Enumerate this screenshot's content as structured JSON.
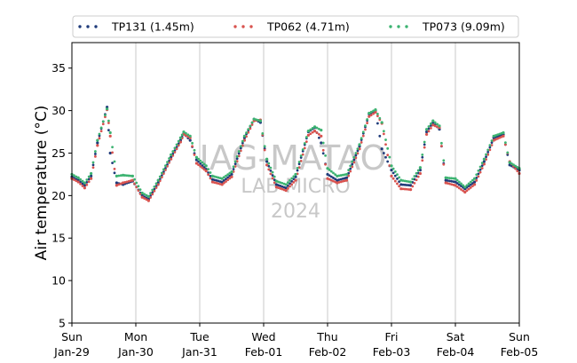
{
  "chart_data": {
    "type": "scatter",
    "ylabel": "Air temperature (°C)",
    "xlabel": "",
    "ylim": [
      5,
      38
    ],
    "yticks": [
      5,
      10,
      15,
      20,
      25,
      30,
      35
    ],
    "x_range_days": [
      0,
      7
    ],
    "xticks": [
      {
        "day": "Sun",
        "date": "Jan-29"
      },
      {
        "day": "Mon",
        "date": "Jan-30"
      },
      {
        "day": "Tue",
        "date": "Jan-31"
      },
      {
        "day": "Wed",
        "date": "Feb-01"
      },
      {
        "day": "Thu",
        "date": "Feb-02"
      },
      {
        "day": "Fri",
        "date": "Feb-03"
      },
      {
        "day": "Sat",
        "date": "Feb-04"
      },
      {
        "day": "Sun",
        "date": "Feb-05"
      }
    ],
    "grid": "vertical",
    "legend_position": "top",
    "watermark": [
      "IAG-MATAO",
      "LAB MICRO",
      "2024"
    ],
    "series": [
      {
        "name": "TP131 (1.45m)",
        "color": "#1f3b7a",
        "points": [
          [
            0.0,
            22.2
          ],
          [
            0.1,
            21.8
          ],
          [
            0.2,
            21.2
          ],
          [
            0.3,
            22.3
          ],
          [
            0.4,
            26.2
          ],
          [
            0.55,
            30.4
          ],
          [
            0.6,
            25.0
          ],
          [
            0.7,
            21.5
          ],
          [
            0.8,
            21.3
          ],
          [
            0.95,
            21.7
          ],
          [
            1.1,
            20.0
          ],
          [
            1.2,
            19.6
          ],
          [
            1.35,
            21.5
          ],
          [
            1.55,
            24.5
          ],
          [
            1.7,
            26.5
          ],
          [
            1.75,
            27.3
          ],
          [
            1.85,
            26.5
          ],
          [
            1.95,
            24.2
          ],
          [
            2.1,
            23.1
          ],
          [
            2.2,
            21.9
          ],
          [
            2.35,
            21.6
          ],
          [
            2.5,
            22.5
          ],
          [
            2.7,
            26.8
          ],
          [
            2.85,
            29.0
          ],
          [
            2.95,
            28.6
          ],
          [
            3.05,
            24.0
          ],
          [
            3.2,
            21.3
          ],
          [
            3.35,
            20.9
          ],
          [
            3.5,
            22.2
          ],
          [
            3.7,
            27.5
          ],
          [
            3.8,
            28.0
          ],
          [
            3.9,
            26.2
          ],
          [
            4.0,
            22.5
          ],
          [
            4.15,
            21.8
          ],
          [
            4.3,
            22.1
          ],
          [
            4.5,
            25.8
          ],
          [
            4.65,
            29.6
          ],
          [
            4.75,
            30.0
          ],
          [
            4.85,
            25.5
          ],
          [
            5.0,
            23.0
          ],
          [
            5.15,
            21.3
          ],
          [
            5.3,
            21.2
          ],
          [
            5.45,
            23.0
          ],
          [
            5.55,
            27.5
          ],
          [
            5.65,
            28.6
          ],
          [
            5.75,
            27.8
          ],
          [
            5.85,
            21.8
          ],
          [
            6.0,
            21.6
          ],
          [
            6.15,
            20.8
          ],
          [
            6.3,
            21.6
          ],
          [
            6.45,
            24.0
          ],
          [
            6.6,
            26.8
          ],
          [
            6.75,
            27.2
          ],
          [
            6.85,
            23.6
          ],
          [
            7.0,
            23.0
          ]
        ]
      },
      {
        "name": "TP062 (4.71m)",
        "color": "#d9534f",
        "points": [
          [
            0.0,
            22.0
          ],
          [
            0.1,
            21.6
          ],
          [
            0.2,
            20.9
          ],
          [
            0.3,
            22.0
          ],
          [
            0.4,
            25.9
          ],
          [
            0.55,
            30.1
          ],
          [
            0.6,
            27.0
          ],
          [
            0.7,
            21.2
          ],
          [
            0.8,
            21.5
          ],
          [
            0.95,
            21.8
          ],
          [
            1.1,
            19.8
          ],
          [
            1.2,
            19.4
          ],
          [
            1.35,
            21.3
          ],
          [
            1.55,
            24.3
          ],
          [
            1.7,
            26.3
          ],
          [
            1.75,
            27.2
          ],
          [
            1.85,
            26.8
          ],
          [
            1.95,
            23.8
          ],
          [
            2.1,
            22.9
          ],
          [
            2.2,
            21.6
          ],
          [
            2.35,
            21.3
          ],
          [
            2.5,
            22.2
          ],
          [
            2.7,
            26.5
          ],
          [
            2.85,
            28.8
          ],
          [
            2.95,
            28.9
          ],
          [
            3.05,
            23.6
          ],
          [
            3.2,
            21.0
          ],
          [
            3.35,
            20.6
          ],
          [
            3.5,
            21.8
          ],
          [
            3.7,
            27.1
          ],
          [
            3.8,
            27.6
          ],
          [
            3.9,
            27.0
          ],
          [
            4.0,
            22.0
          ],
          [
            4.15,
            21.5
          ],
          [
            4.3,
            21.8
          ],
          [
            4.5,
            25.5
          ],
          [
            4.65,
            29.3
          ],
          [
            4.75,
            29.8
          ],
          [
            4.85,
            28.5
          ],
          [
            5.0,
            22.3
          ],
          [
            5.15,
            20.8
          ],
          [
            5.3,
            20.7
          ],
          [
            5.45,
            22.6
          ],
          [
            5.55,
            27.2
          ],
          [
            5.65,
            28.3
          ],
          [
            5.75,
            28.0
          ],
          [
            5.85,
            21.5
          ],
          [
            6.0,
            21.2
          ],
          [
            6.15,
            20.4
          ],
          [
            6.3,
            21.3
          ],
          [
            6.45,
            23.7
          ],
          [
            6.6,
            26.5
          ],
          [
            6.75,
            27.0
          ],
          [
            6.85,
            24.0
          ],
          [
            7.0,
            22.6
          ]
        ]
      },
      {
        "name": "TP073 (9.09m)",
        "color": "#3cb371",
        "points": [
          [
            0.0,
            22.5
          ],
          [
            0.1,
            22.1
          ],
          [
            0.2,
            21.5
          ],
          [
            0.3,
            22.6
          ],
          [
            0.4,
            26.5
          ],
          [
            0.55,
            30.2
          ],
          [
            0.6,
            27.4
          ],
          [
            0.7,
            22.3
          ],
          [
            0.8,
            22.4
          ],
          [
            0.95,
            22.3
          ],
          [
            1.1,
            20.3
          ],
          [
            1.2,
            19.9
          ],
          [
            1.35,
            21.8
          ],
          [
            1.55,
            24.8
          ],
          [
            1.7,
            26.8
          ],
          [
            1.75,
            27.5
          ],
          [
            1.85,
            27.0
          ],
          [
            1.95,
            24.5
          ],
          [
            2.1,
            23.5
          ],
          [
            2.2,
            22.3
          ],
          [
            2.35,
            22.0
          ],
          [
            2.5,
            22.8
          ],
          [
            2.7,
            27.0
          ],
          [
            2.85,
            29.0
          ],
          [
            2.95,
            28.8
          ],
          [
            3.05,
            24.3
          ],
          [
            3.2,
            21.7
          ],
          [
            3.35,
            21.3
          ],
          [
            3.5,
            22.5
          ],
          [
            3.7,
            27.6
          ],
          [
            3.8,
            28.1
          ],
          [
            3.9,
            27.7
          ],
          [
            4.0,
            23.2
          ],
          [
            4.15,
            22.3
          ],
          [
            4.3,
            22.5
          ],
          [
            4.5,
            26.0
          ],
          [
            4.65,
            29.7
          ],
          [
            4.75,
            30.1
          ],
          [
            4.85,
            28.6
          ],
          [
            5.0,
            23.5
          ],
          [
            5.15,
            21.8
          ],
          [
            5.3,
            21.6
          ],
          [
            5.45,
            23.3
          ],
          [
            5.55,
            27.8
          ],
          [
            5.65,
            28.8
          ],
          [
            5.75,
            28.2
          ],
          [
            5.85,
            22.1
          ],
          [
            6.0,
            22.0
          ],
          [
            6.15,
            21.0
          ],
          [
            6.3,
            22.0
          ],
          [
            6.45,
            24.3
          ],
          [
            6.6,
            27.0
          ],
          [
            6.75,
            27.4
          ],
          [
            6.85,
            23.9
          ],
          [
            7.0,
            23.2
          ]
        ]
      }
    ]
  }
}
